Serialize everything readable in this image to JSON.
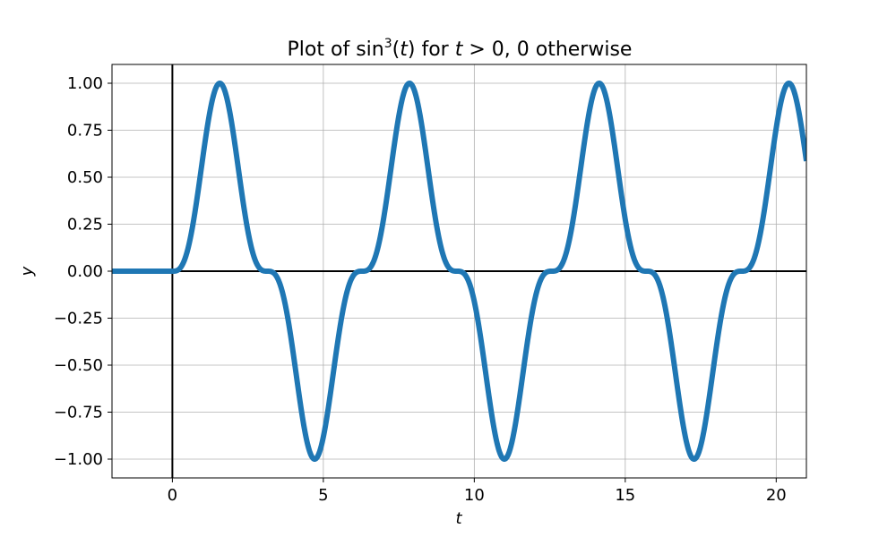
{
  "chart_data": {
    "type": "line",
    "title_prefix": "Plot of sin",
    "title_sup": "3",
    "title_paren": "(",
    "title_var": "t",
    "title_after_var": ") for ",
    "title_cond_var": "t",
    "title_cond": " > 0, 0 otherwise",
    "xlabel": "t",
    "ylabel": "y",
    "xlim": [
      -2,
      21
    ],
    "ylim": [
      -1.1,
      1.1
    ],
    "xticks": [
      0,
      5,
      10,
      15,
      20
    ],
    "xtick_labels": [
      "0",
      "5",
      "10",
      "15",
      "20"
    ],
    "yticks": [
      -1.0,
      -0.75,
      -0.5,
      -0.25,
      0.0,
      0.25,
      0.5,
      0.75,
      1.0
    ],
    "ytick_labels": [
      "−1.00",
      "−0.75",
      "−0.50",
      "−0.25",
      "0.00",
      "0.25",
      "0.50",
      "0.75",
      "1.00"
    ],
    "grid": true,
    "function": "sin(t)^3 for t > 0, 0 otherwise",
    "series": [
      {
        "color": "#1f77b4",
        "x": [
          -2,
          -1,
          0,
          0.5,
          1,
          1.5708,
          2,
          2.5,
          3,
          3.5,
          4,
          4.7124,
          5,
          5.5,
          6,
          6.5,
          7,
          7.854,
          8.5,
          9,
          9.5,
          10,
          10.5,
          10.9956,
          11.5,
          12,
          12.5,
          13,
          13.5,
          14.1372,
          14.5,
          15,
          15.5,
          16,
          16.5,
          17.2788,
          17.5,
          18,
          18.5,
          19,
          19.5,
          20.4204,
          21
        ],
        "y": [
          0,
          0,
          0,
          0.1102,
          0.5958,
          1.0,
          0.7518,
          0.2164,
          0.0028,
          -0.0428,
          -0.4154,
          -1.0,
          -0.8817,
          -0.3148,
          -0.0215,
          0.0052,
          0.2524,
          1.0,
          0.5348,
          0.07,
          -0.0026,
          -0.1585,
          -0.698,
          -1.0,
          -0.7143,
          -0.1574,
          -0.0019,
          0.0824,
          0.6167,
          1.0,
          0.8874,
          0.2832,
          0.0157,
          -0.0195,
          -0.3989,
          -1.0,
          -0.947,
          -0.4178,
          -0.0199,
          0.0056,
          0.2727,
          1.0,
          0.6016
        ]
      }
    ]
  }
}
